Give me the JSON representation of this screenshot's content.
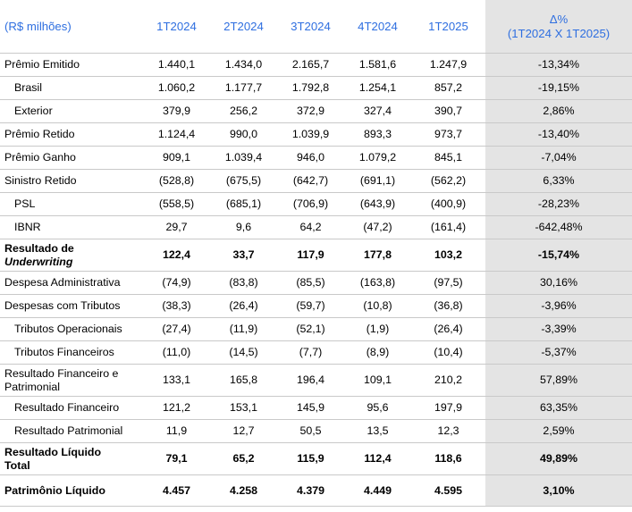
{
  "header": {
    "label": "(R$ milhões)",
    "periods": [
      "1T2024",
      "2T2024",
      "3T2024",
      "4T2024",
      "1T2025"
    ],
    "delta_line1": "Δ%",
    "delta_line2": "(1T2024 X 1T2025)"
  },
  "rows": [
    {
      "label": "Prêmio Emitido",
      "values": [
        "1.440,1",
        "1.434,0",
        "2.165,7",
        "1.581,6",
        "1.247,9"
      ],
      "delta": "-13,34%"
    },
    {
      "label": "Brasil",
      "values": [
        "1.060,2",
        "1.177,7",
        "1.792,8",
        "1.254,1",
        "857,2"
      ],
      "delta": "-19,15%"
    },
    {
      "label": "Exterior",
      "values": [
        "379,9",
        "256,2",
        "372,9",
        "327,4",
        "390,7"
      ],
      "delta": "2,86%"
    },
    {
      "label": "Prêmio Retido",
      "values": [
        "1.124,4",
        "990,0",
        "1.039,9",
        "893,3",
        "973,7"
      ],
      "delta": "-13,40%"
    },
    {
      "label": "Prêmio Ganho",
      "values": [
        "909,1",
        "1.039,4",
        "946,0",
        "1.079,2",
        "845,1"
      ],
      "delta": "-7,04%"
    },
    {
      "label": "Sinistro Retido",
      "values": [
        "(528,8)",
        "(675,5)",
        "(642,7)",
        "(691,1)",
        "(562,2)"
      ],
      "delta": "6,33%"
    },
    {
      "label": "PSL",
      "values": [
        "(558,5)",
        "(685,1)",
        "(706,9)",
        "(643,9)",
        "(400,9)"
      ],
      "delta": "-28,23%"
    },
    {
      "label": "IBNR",
      "values": [
        "29,7",
        "9,6",
        "64,2",
        "(47,2)",
        "(161,4)"
      ],
      "delta": "-642,48%"
    },
    {
      "label": "Resultado de",
      "label_line2": "Underwriting",
      "values": [
        "122,4",
        "33,7",
        "117,9",
        "177,8",
        "103,2"
      ],
      "delta": "-15,74%"
    },
    {
      "label": "Despesa Administrativa",
      "values": [
        "(74,9)",
        "(83,8)",
        "(85,5)",
        "(163,8)",
        "(97,5)"
      ],
      "delta": "30,16%"
    },
    {
      "label": "Despesas com Tributos",
      "values": [
        "(38,3)",
        "(26,4)",
        "(59,7)",
        "(10,8)",
        "(36,8)"
      ],
      "delta": "-3,96%"
    },
    {
      "label": "Tributos Operacionais",
      "values": [
        "(27,4)",
        "(11,9)",
        "(52,1)",
        "(1,9)",
        "(26,4)"
      ],
      "delta": "-3,39%"
    },
    {
      "label": "Tributos Financeiros",
      "values": [
        "(11,0)",
        "(14,5)",
        "(7,7)",
        "(8,9)",
        "(10,4)"
      ],
      "delta": "-5,37%"
    },
    {
      "label": "Resultado Financeiro e",
      "label_line2": "Patrimonial",
      "values": [
        "133,1",
        "165,8",
        "196,4",
        "109,1",
        "210,2"
      ],
      "delta": "57,89%"
    },
    {
      "label": "Resultado Financeiro",
      "values": [
        "121,2",
        "153,1",
        "145,9",
        "95,6",
        "197,9"
      ],
      "delta": "63,35%"
    },
    {
      "label": "Resultado Patrimonial",
      "values": [
        "11,9",
        "12,7",
        "50,5",
        "13,5",
        "12,3"
      ],
      "delta": "2,59%"
    },
    {
      "label": "Resultado Líquido",
      "label_line2": "Total",
      "values": [
        "79,1",
        "65,2",
        "115,9",
        "112,4",
        "118,6"
      ],
      "delta": "49,89%"
    },
    {
      "label": "Patrimônio Líquido",
      "values": [
        "4.457",
        "4.258",
        "4.379",
        "4.449",
        "4.595"
      ],
      "delta": "3,10%"
    }
  ]
}
